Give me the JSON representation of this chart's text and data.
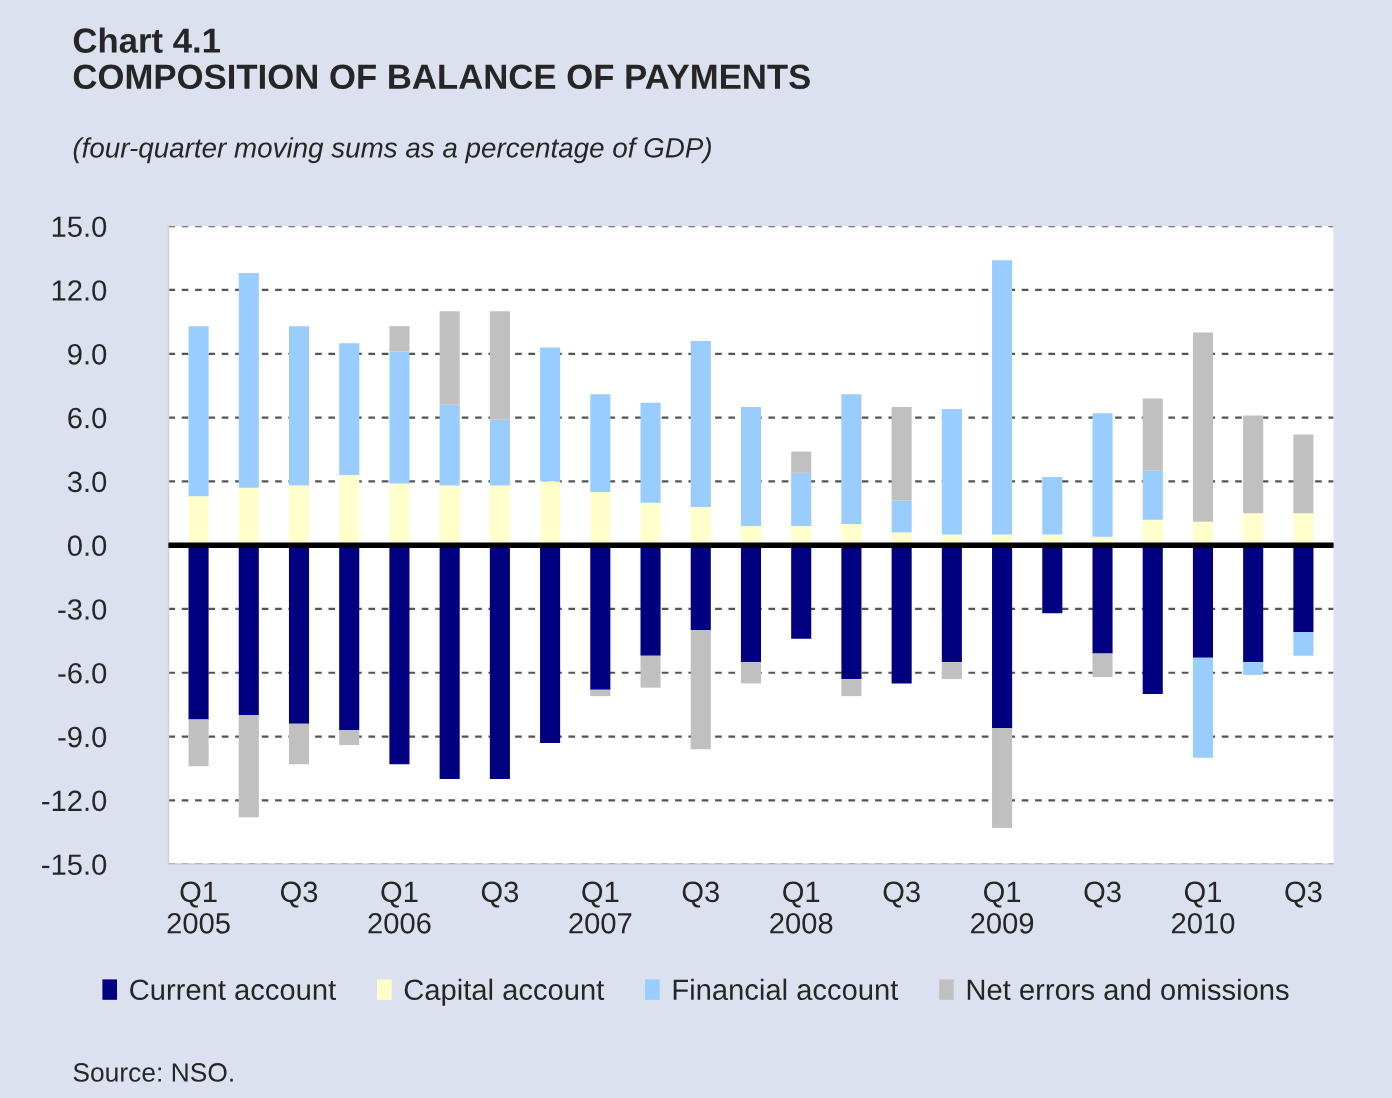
{
  "chart_data": {
    "type": "bar",
    "stacked": true,
    "title": "Chart 4.1\nCOMPOSITION OF BALANCE OF PAYMENTS",
    "subtitle": "(four-quarter moving sums as a percentage of GDP)",
    "categories": [
      "Q1\n2005",
      null,
      "Q3",
      null,
      "Q1\n2006",
      null,
      "Q3",
      null,
      "Q1\n2007",
      null,
      "Q3",
      null,
      "Q1\n2008",
      null,
      "Q3",
      null,
      "Q1\n2009",
      null,
      "Q3",
      null,
      "Q1\n2010",
      null,
      "Q3"
    ],
    "series": [
      {
        "name": "Current account",
        "color": "#000080",
        "values": [
          -8.2,
          -8.0,
          -8.4,
          -8.7,
          -10.3,
          -11.0,
          -11.0,
          -9.3,
          -6.8,
          -5.2,
          -4.0,
          -5.5,
          -4.4,
          -6.3,
          -6.5,
          -5.5,
          -8.6,
          -3.2,
          -5.1,
          -7.0,
          -5.3,
          -5.5,
          -4.1
        ]
      },
      {
        "name": "Capital account",
        "color": "#ffffcc",
        "values": [
          2.3,
          2.7,
          2.8,
          3.3,
          2.9,
          2.8,
          2.8,
          3.0,
          2.5,
          2.0,
          1.8,
          0.9,
          0.9,
          1.0,
          0.6,
          0.5,
          0.5,
          0.5,
          0.4,
          1.2,
          1.1,
          1.5,
          1.5
        ]
      },
      {
        "name": "Financial account",
        "color": "#99ccff",
        "values": [
          8.0,
          10.1,
          7.5,
          6.2,
          6.2,
          3.8,
          3.1,
          6.3,
          4.6,
          4.7,
          7.8,
          5.6,
          2.5,
          6.1,
          1.5,
          5.9,
          12.9,
          2.7,
          5.8,
          2.3,
          -4.7,
          -0.6,
          -1.1
        ]
      },
      {
        "name": "Net errors and omissions",
        "color": "#c0c0c0",
        "values": [
          -2.2,
          -4.8,
          -1.9,
          -0.7,
          1.2,
          4.4,
          5.1,
          null,
          -0.3,
          -1.5,
          -5.6,
          -1.0,
          1.0,
          -0.8,
          4.4,
          -0.8,
          -4.7,
          null,
          -1.1,
          3.4,
          8.9,
          4.6,
          3.7
        ]
      }
    ],
    "ylim": [
      -15,
      15
    ],
    "yticks": [
      {
        "value": -15,
        "label": "-15.0"
      },
      {
        "value": -12,
        "label": "-12.0"
      },
      {
        "value": -9,
        "label": "-9.0"
      },
      {
        "value": -6,
        "label": "-6.0"
      },
      {
        "value": -3,
        "label": "-3.0"
      },
      {
        "value": 0,
        "label": "0.0"
      },
      {
        "value": 3,
        "label": "3.0"
      },
      {
        "value": 6,
        "label": "6.0"
      },
      {
        "value": 9,
        "label": "9.0"
      },
      {
        "value": 12,
        "label": "12.0"
      },
      {
        "value": 15,
        "label": "15.0"
      }
    ],
    "ref_lines": [
      {
        "axis": "y",
        "value": 0,
        "color": "#000000"
      }
    ],
    "grid": "y",
    "legend": "bottom",
    "annotations": [
      "Source: NSO."
    ]
  }
}
